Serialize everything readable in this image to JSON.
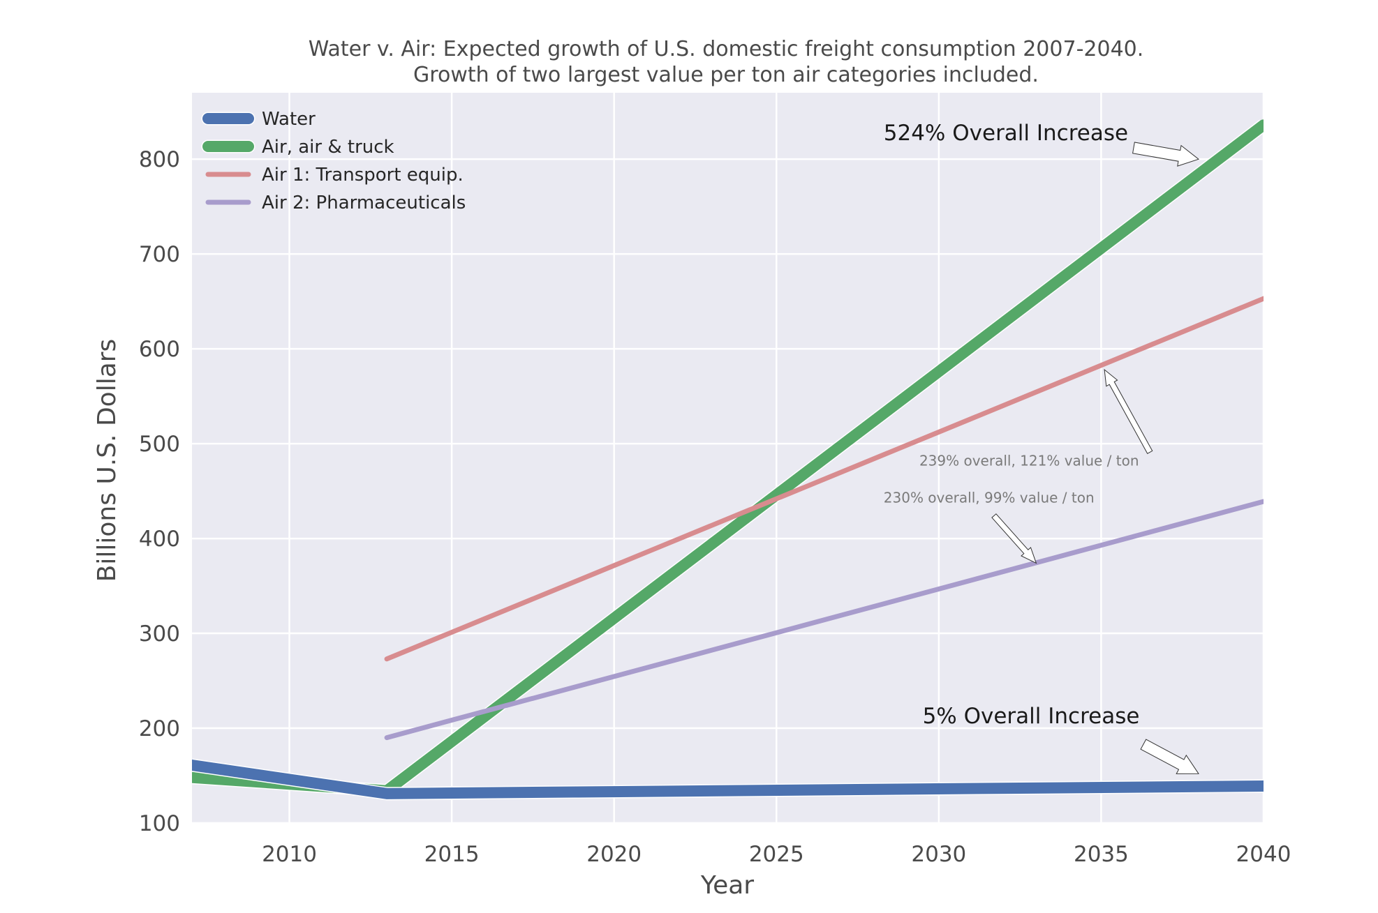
{
  "chart_data": {
    "type": "line",
    "title": "Water v. Air: Expected growth of U.S. domestic freight consumption 2007-2040.",
    "subtitle": "Growth of two largest value per ton air categories included.",
    "xlabel": "Year",
    "ylabel": "Billions U.S. Dollars",
    "xlim": [
      2007,
      2040
    ],
    "ylim": [
      100,
      870
    ],
    "xticks": [
      2010,
      2015,
      2020,
      2025,
      2030,
      2035,
      2040
    ],
    "yticks": [
      100,
      200,
      300,
      400,
      500,
      600,
      700,
      800
    ],
    "grid": true,
    "legend_position": "top-left",
    "series": [
      {
        "name": "Water",
        "color": "#4c72b0",
        "weight": "heavy",
        "x": [
          2007,
          2013,
          2040
        ],
        "y": [
          161,
          131,
          139
        ]
      },
      {
        "name": "Air, air & truck",
        "color": "#55a868",
        "weight": "heavy",
        "x": [
          2007,
          2013,
          2040
        ],
        "y": [
          148,
          134,
          836
        ]
      },
      {
        "name": "Air 1: Transport equip.",
        "color": "#d88c8f",
        "weight": "light",
        "x": [
          2013,
          2040
        ],
        "y": [
          273,
          653
        ]
      },
      {
        "name": "Air 2: Pharmaceuticals",
        "color": "#a89ccc",
        "weight": "light",
        "x": [
          2013,
          2040
        ],
        "y": [
          190,
          439
        ]
      }
    ],
    "annotations": [
      {
        "text": "524% Overall Increase",
        "size": "large",
        "text_at": [
          2028.3,
          820
        ],
        "arrow_from": [
          2036.0,
          812
        ],
        "arrow_to": [
          2038.0,
          800
        ]
      },
      {
        "text": "5% Overall Increase",
        "size": "large",
        "text_at": [
          2029.5,
          205
        ],
        "arrow_from": [
          2036.3,
          183
        ],
        "arrow_to": [
          2038.0,
          152
        ]
      },
      {
        "text": "239% overall, 121% value / ton",
        "size": "small",
        "text_at": [
          2029.4,
          477
        ],
        "arrow_from": [
          2036.5,
          491
        ],
        "arrow_to": [
          2035.1,
          578
        ]
      },
      {
        "text": "230% overall, 99% value / ton",
        "size": "small",
        "text_at": [
          2028.3,
          438
        ],
        "arrow_from": [
          2031.7,
          424
        ],
        "arrow_to": [
          2033.0,
          374
        ]
      }
    ]
  }
}
